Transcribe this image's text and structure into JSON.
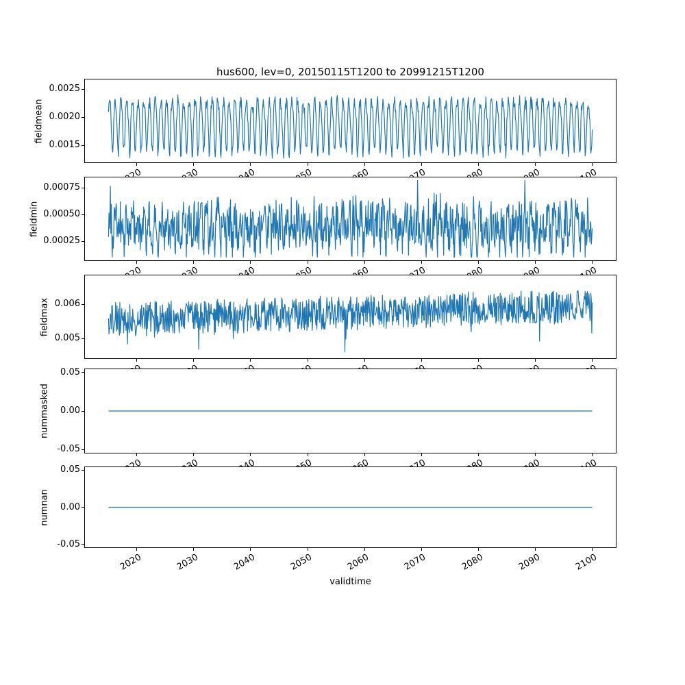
{
  "chart_data": {
    "type": "line",
    "title": "hus600, lev=0, 20150115T1200 to 20991215T1200",
    "xlabel": "validtime",
    "line_color": "#1f77b4",
    "background_color": "#ffffff",
    "axis_color": "#000000",
    "grid": false,
    "legend_position": "none",
    "points_per_year": 12,
    "x_range": [
      2015.042,
      2099.958
    ],
    "xlim": [
      2010.79,
      2104.21
    ],
    "x_ticks": [
      2020,
      2030,
      2040,
      2050,
      2060,
      2070,
      2080,
      2090,
      2100
    ],
    "x_tick_labels": [
      "2020",
      "2030",
      "2040",
      "2050",
      "2060",
      "2070",
      "2080",
      "2090",
      "2100"
    ],
    "subplots": [
      {
        "ylabel": "fieldmean",
        "ylim": [
          0.001182,
          0.002689
        ],
        "y_ticks": [
          0.0015,
          0.002,
          0.0025
        ],
        "y_tick_labels": [
          "0.0015",
          "0.0020",
          "0.0025"
        ],
        "series": {
          "name": "fieldmean",
          "pattern": "regular annual seasonal oscillation with small noise",
          "approx_min": 0.00125,
          "approx_max": 0.0026,
          "gen": {
            "base": 0.0019,
            "seasonal_amp": 0.00045,
            "seasonal_amp2": 8e-05,
            "noise": 0.00012,
            "trend": 0,
            "spike_prob": 0,
            "spike": 0,
            "clamp": [
              0.00125,
              0.00262
            ],
            "seed": 11
          }
        }
      },
      {
        "ylabel": "fieldmin",
        "ylim": [
          6.4e-05,
          0.000856
        ],
        "y_ticks": [
          0.00025,
          0.0005,
          0.00075
        ],
        "y_tick_labels": [
          "0.00025",
          "0.00050",
          "0.00075"
        ],
        "series": {
          "name": "fieldmin",
          "pattern": "very noisy seasonal signal with upward spikes",
          "approx_min": 0.0001,
          "approx_max": 0.00082,
          "gen": {
            "base": 0.00038,
            "seasonal_amp": 0.0001,
            "seasonal_amp2": 5e-05,
            "noise": 0.0002,
            "trend": 0,
            "spike_prob": 0.04,
            "spike": 0.00028,
            "clamp": [
              0.0001,
              0.00082
            ],
            "seed": 23
          }
        }
      },
      {
        "ylabel": "fieldmax",
        "ylim": [
          0.00441,
          0.00686
        ],
        "y_ticks": [
          0.005,
          0.006
        ],
        "y_tick_labels": [
          "0.005",
          "0.006"
        ],
        "series": {
          "name": "fieldmax",
          "pattern": "noisy signal around 0.0056 with slight upward trend and occasional downward spikes",
          "approx_min": 0.0047,
          "approx_max": 0.0068,
          "gen": {
            "base": 0.00556,
            "seasonal_amp": 4e-05,
            "seasonal_amp2": 0,
            "noise": 0.00048,
            "trend": 0.0004,
            "spike_prob": 0.03,
            "spike": -0.0007,
            "clamp": [
              0.00447,
              0.00679
            ],
            "seed": 37
          }
        }
      },
      {
        "ylabel": "nummasked",
        "ylim": [
          -0.055,
          0.055
        ],
        "y_ticks": [
          -0.05,
          0,
          0.05
        ],
        "y_tick_labels": [
          "-0.05",
          "0.00",
          "0.05"
        ],
        "series": {
          "name": "nummasked",
          "pattern": "constant zero",
          "approx_min": 0,
          "approx_max": 0,
          "gen": {
            "base": 0,
            "seasonal_amp": 0,
            "seasonal_amp2": 0,
            "noise": 0,
            "trend": 0,
            "spike_prob": 0,
            "spike": 0,
            "clamp": [
              0,
              0
            ],
            "seed": 1
          }
        }
      },
      {
        "ylabel": "numnan",
        "ylim": [
          -0.055,
          0.055
        ],
        "y_ticks": [
          -0.05,
          0,
          0.05
        ],
        "y_tick_labels": [
          "-0.05",
          "0.00",
          "0.05"
        ],
        "series": {
          "name": "numnan",
          "pattern": "constant zero",
          "approx_min": 0,
          "approx_max": 0,
          "gen": {
            "base": 0,
            "seasonal_amp": 0,
            "seasonal_amp2": 0,
            "noise": 0,
            "trend": 0,
            "spike_prob": 0,
            "spike": 0,
            "clamp": [
              0,
              0
            ],
            "seed": 2
          }
        }
      }
    ]
  }
}
